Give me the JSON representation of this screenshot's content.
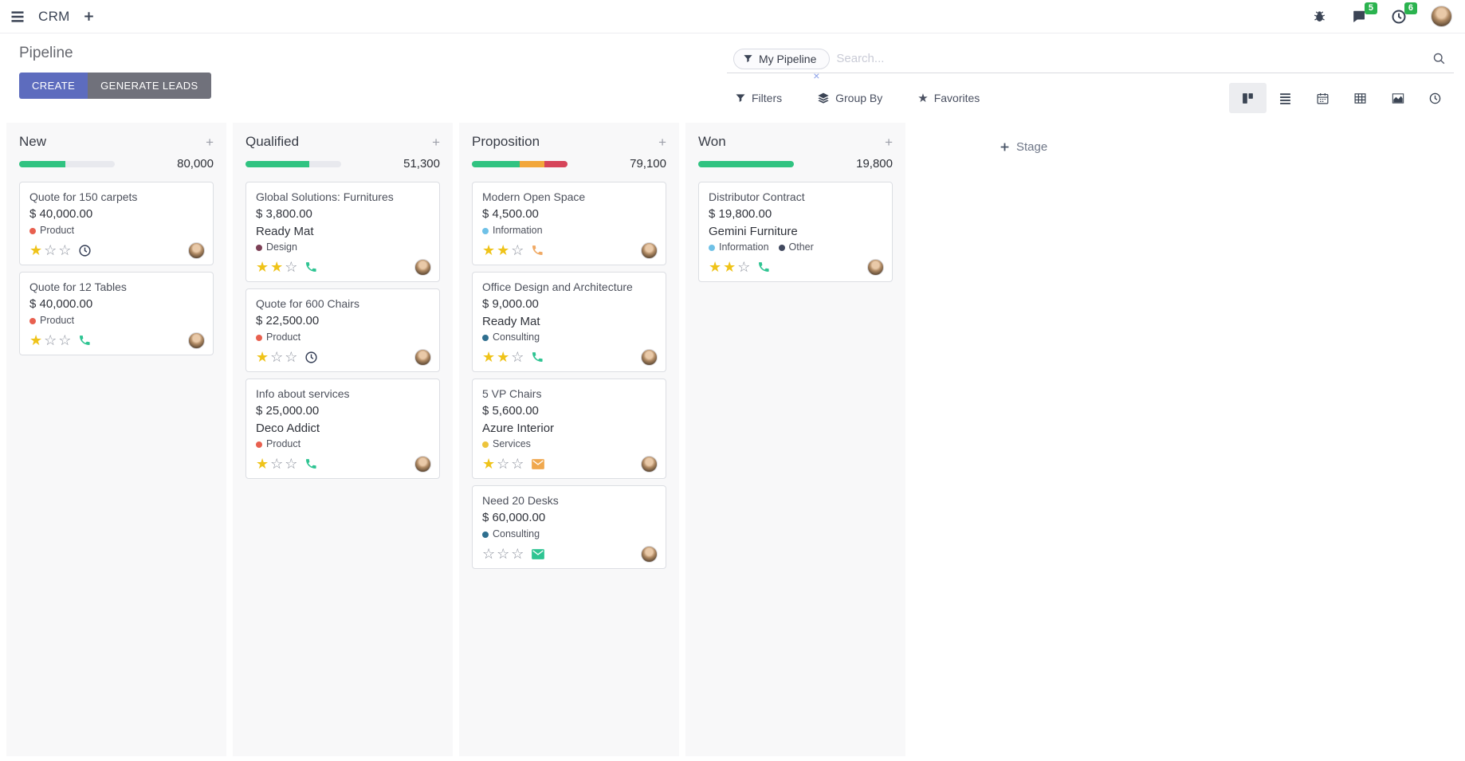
{
  "topbar": {
    "app_name": "CRM",
    "messages_badge": "5",
    "activities_badge": "6"
  },
  "control_panel": {
    "title": "Pipeline",
    "create_label": "CREATE",
    "generate_leads_label": "GENERATE LEADS",
    "search": {
      "facet": "My Pipeline",
      "facet_remove": "×",
      "placeholder": "Search..."
    },
    "filters_label": "Filters",
    "group_by_label": "Group By",
    "favorites_label": "Favorites",
    "views": [
      {
        "name": "kanban",
        "active": true
      },
      {
        "name": "list",
        "active": false
      },
      {
        "name": "calendar",
        "active": false
      },
      {
        "name": "pivot",
        "active": false
      },
      {
        "name": "graph",
        "active": false
      },
      {
        "name": "activity",
        "active": false
      }
    ]
  },
  "kanban": {
    "add_stage_label": "Stage",
    "stars_total": 3,
    "columns": [
      {
        "title": "New",
        "counter": "80,000",
        "progress": [
          {
            "color": "#30c381",
            "pct": 48
          }
        ],
        "cards": [
          {
            "title": "Quote for 150 carpets",
            "amount": "$ 40,000.00",
            "tags": [
              {
                "label": "Product",
                "color": "#e8604f"
              }
            ],
            "stars": 1,
            "activity": {
              "icon": "clock-icon",
              "color": "#303a52"
            }
          },
          {
            "title": "Quote for 12 Tables",
            "amount": "$ 40,000.00",
            "tags": [
              {
                "label": "Product",
                "color": "#e8604f"
              }
            ],
            "stars": 1,
            "activity": {
              "icon": "phone-icon",
              "color": "#2ec492"
            }
          }
        ]
      },
      {
        "title": "Qualified",
        "counter": "51,300",
        "progress": [
          {
            "color": "#30c381",
            "pct": 67
          }
        ],
        "cards": [
          {
            "title": "Global Solutions: Furnitures",
            "amount": "$ 3,800.00",
            "partner": "Ready Mat",
            "tags": [
              {
                "label": "Design",
                "color": "#7c4056"
              }
            ],
            "stars": 2,
            "activity": {
              "icon": "phone-icon",
              "color": "#2ec492"
            }
          },
          {
            "title": "Quote for 600 Chairs",
            "amount": "$ 22,500.00",
            "tags": [
              {
                "label": "Product",
                "color": "#e8604f"
              }
            ],
            "stars": 1,
            "activity": {
              "icon": "clock-icon",
              "color": "#303a52"
            }
          },
          {
            "title": "Info about services",
            "amount": "$ 25,000.00",
            "partner": "Deco Addict",
            "tags": [
              {
                "label": "Product",
                "color": "#e8604f"
              }
            ],
            "stars": 1,
            "activity": {
              "icon": "phone-icon",
              "color": "#2ec492"
            }
          }
        ]
      },
      {
        "title": "Proposition",
        "counter": "79,100",
        "progress": [
          {
            "color": "#30c381",
            "pct": 50
          },
          {
            "color": "#f2a73b",
            "pct": 26
          },
          {
            "color": "#d6455a",
            "pct": 24
          }
        ],
        "cards": [
          {
            "title": "Modern Open Space",
            "amount": "$ 4,500.00",
            "tags": [
              {
                "label": "Information",
                "color": "#6fc1e7"
              }
            ],
            "stars": 2,
            "activity": {
              "icon": "phone-icon",
              "color": "#f0a964"
            }
          },
          {
            "title": "Office Design and Architecture",
            "amount": "$ 9,000.00",
            "partner": "Ready Mat",
            "tags": [
              {
                "label": "Consulting",
                "color": "#2f6f8f"
              }
            ],
            "stars": 2,
            "activity": {
              "icon": "phone-icon",
              "color": "#2ec492"
            }
          },
          {
            "title": "5 VP Chairs",
            "amount": "$ 5,600.00",
            "partner": "Azure Interior",
            "tags": [
              {
                "label": "Services",
                "color": "#edc43c"
              }
            ],
            "stars": 1,
            "activity": {
              "icon": "envelope-icon",
              "color": "#f0a84e"
            }
          },
          {
            "title": "Need 20 Desks",
            "amount": "$ 60,000.00",
            "tags": [
              {
                "label": "Consulting",
                "color": "#2f6f8f"
              }
            ],
            "stars": 0,
            "activity": {
              "icon": "envelope-icon",
              "color": "#2ec492"
            }
          }
        ]
      },
      {
        "title": "Won",
        "counter": "19,800",
        "progress": [
          {
            "color": "#30c381",
            "pct": 100
          }
        ],
        "cards": [
          {
            "title": "Distributor Contract",
            "amount": "$ 19,800.00",
            "partner": "Gemini Furniture",
            "tags": [
              {
                "label": "Information",
                "color": "#6fc1e7"
              },
              {
                "label": "Other",
                "color": "#41495f"
              }
            ],
            "stars": 2,
            "activity": {
              "icon": "phone-icon",
              "color": "#2ec492"
            }
          }
        ]
      }
    ]
  }
}
